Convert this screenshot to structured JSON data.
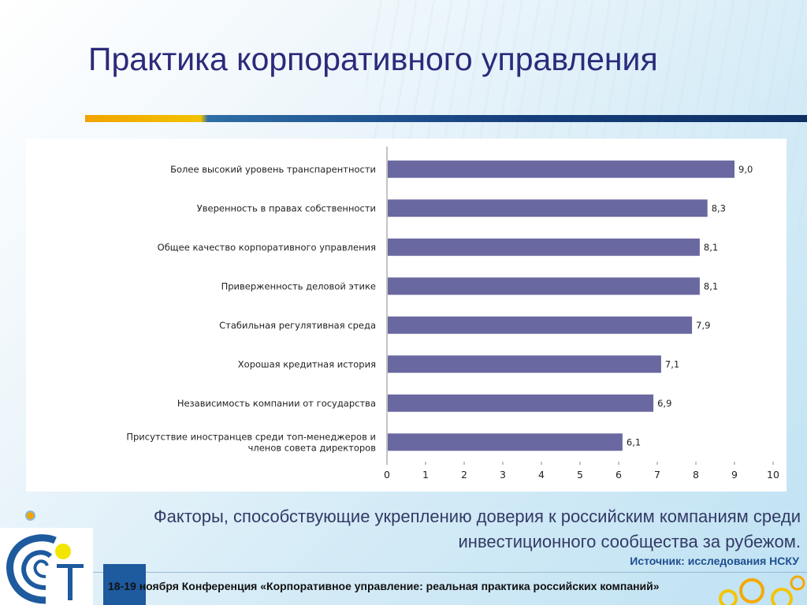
{
  "slide": {
    "title": "Практика корпоративного управления",
    "caption_line1": "Факторы, способствующие укреплению доверия к российским компаниям среди",
    "caption_line2": "инвестиционного сообщества за рубежом.",
    "source": "Источник: исследования НСКУ",
    "footer": "18-19 ноября Конференция «Корпоративное управление: реальная практика российских компаний»"
  },
  "colors": {
    "bar": "#6a68a0",
    "title": "#2b2a7a",
    "accent_orange": "#f2a300",
    "accent_blue": "#1d5a9e"
  },
  "chart_data": {
    "type": "bar",
    "orientation": "horizontal",
    "categories": [
      [
        "Более высокий уровень транспарентности"
      ],
      [
        "Уверенность в правах собственности"
      ],
      [
        "Общее качество корпоративного управления"
      ],
      [
        "Приверженность деловой этике"
      ],
      [
        "Стабильная регулятивная среда"
      ],
      [
        "Хорошая кредитная история"
      ],
      [
        "Независимость компании от государства"
      ],
      [
        "Присутствие иностранцев среди топ-менеджеров и",
        "членов совета директоров"
      ]
    ],
    "values": [
      9.0,
      8.3,
      8.1,
      8.1,
      7.9,
      7.1,
      6.9,
      6.1
    ],
    "value_labels": [
      "9,0",
      "8,3",
      "8,1",
      "8,1",
      "7,9",
      "7,1",
      "6,9",
      "6,1"
    ],
    "xlim": [
      0,
      10
    ],
    "xticks": [
      "0",
      "1",
      "2",
      "3",
      "4",
      "5",
      "6",
      "7",
      "8",
      "9",
      "10"
    ],
    "grid": false,
    "legend": "none"
  }
}
